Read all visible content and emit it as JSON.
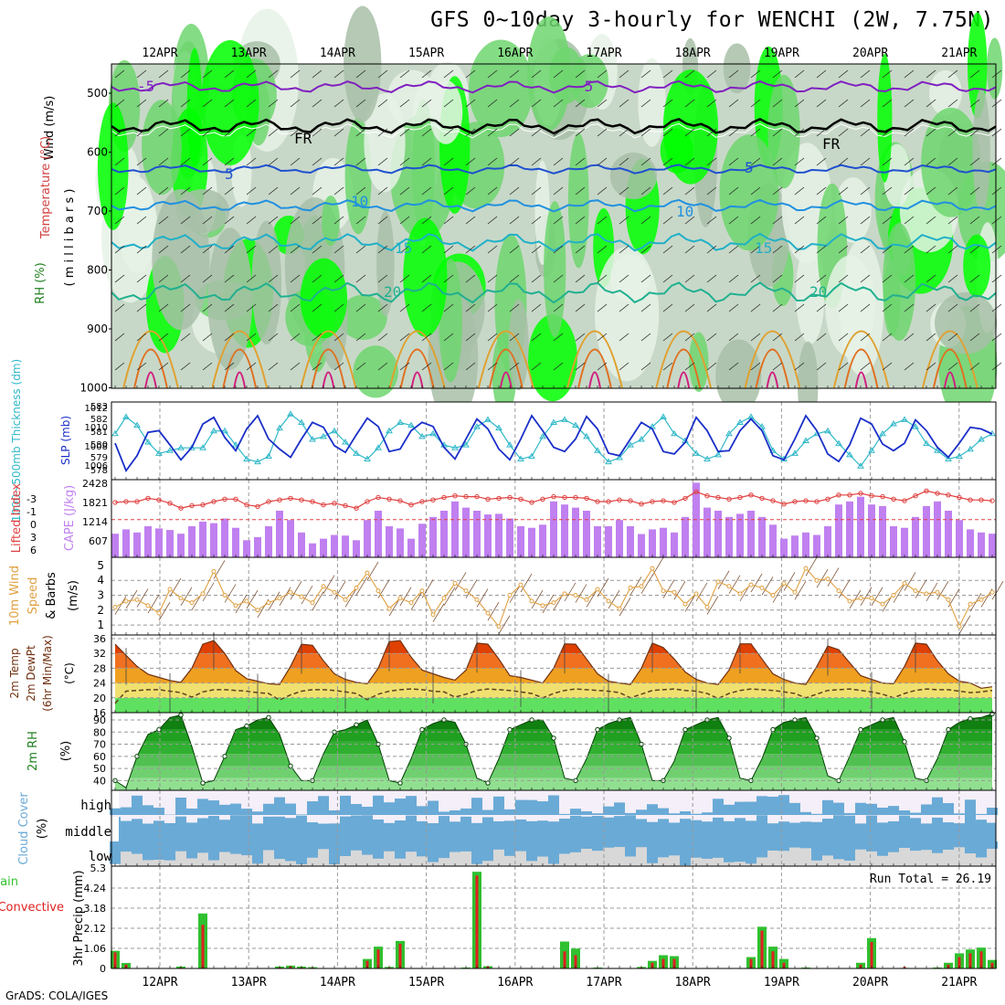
{
  "title": "GFS 0~10day 3-hourly for WENCHI (2W, 7.75N)",
  "credit": "GrADS: COLA/IGES",
  "dates": [
    "12APR",
    "13APR",
    "14APR",
    "15APR",
    "16APR",
    "17APR",
    "18APR",
    "19APR",
    "20APR",
    "21APR"
  ],
  "colors": {
    "rh_light": "#e6f2e6",
    "rh_mid": "#c8d8c8",
    "rh_dark": "#a8c0a8",
    "rh_green": "#6ed66e",
    "rh_bright": "#00ff00",
    "slp": "#1a2fc8",
    "thickness": "#30b8c8",
    "li": "#e04040",
    "cape": "#c080f0",
    "wind10": "#e0a040",
    "temp_hot": "#e04000",
    "temp_warm": "#f0a020",
    "temp_mild": "#f0e070",
    "temp_cool": "#60e060",
    "rh_fill_dark": "#108010",
    "rh_fill_light": "#90e090",
    "cloud_blue": "#6aaad6",
    "cloud_grey": "#d8d8d8",
    "precip_total": "#30c030",
    "precip_conv": "#e02020"
  },
  "panels": {
    "upper": {
      "ylabel_wind": "Wind (m/s)",
      "ylabel_temp": "Temperature (°C)",
      "ylabel_rh": "RH (%)",
      "ylabel_p": "( m i l l i b a r s )",
      "yticks": [
        "500",
        "600",
        "700",
        "800",
        "900",
        "1000"
      ],
      "contour_labels": [
        "-5",
        "-5",
        "FR",
        "FR",
        "5",
        "5",
        "10",
        "10",
        "15",
        "15",
        "20",
        "20"
      ]
    },
    "slp": {
      "ylabel_thk": "1000~500mb Thickness (dm)",
      "ylabel_slp": "SLP (mb)",
      "left_ticks": [
        "583",
        "582",
        "581",
        "580",
        "579",
        "578"
      ],
      "right_ticks": [
        "1012",
        "1010",
        "1008",
        "1006"
      ]
    },
    "cape": {
      "ylabel_li": "Lifted Index",
      "ylabel_cape": "CAPE (J/kg)",
      "left_ticks": [
        "-3",
        "-1",
        "0",
        "3",
        "6"
      ],
      "right_ticks": [
        "2428",
        "1821",
        "1214",
        "607"
      ]
    },
    "wind": {
      "ylabel1": "10m Wind",
      "ylabel2": "Speed",
      "ylabel3": "& Barbs",
      "unit": "(m/s)",
      "ticks": [
        "5",
        "4",
        "3",
        "2",
        "1"
      ]
    },
    "temp": {
      "ylabel1": "2m Temp",
      "ylabel2": "2m DewPt",
      "ylabel3": "(6hr Min/Max)",
      "unit": "(°C)",
      "ticks": [
        "36",
        "32",
        "28",
        "24",
        "20",
        "16"
      ]
    },
    "rh2m": {
      "ylabel": "2m RH",
      "unit": "(%)",
      "ticks": [
        "90",
        "80",
        "70",
        "60",
        "50",
        "40"
      ]
    },
    "cloud": {
      "ylabel": "Cloud Cover",
      "unit": "(%)",
      "levels": [
        "high",
        "middle",
        "low"
      ]
    },
    "precip": {
      "ylabel1": "Total / Rain",
      "ylabel2": "Convective",
      "ylabel3": "3hr Precip (mm)",
      "ticks": [
        "5.3",
        "4.24",
        "3.18",
        "2.12",
        "1.06",
        "0"
      ],
      "run_total": "Run Total = 26.19"
    }
  },
  "chart_data": [
    {
      "type": "line",
      "title": "",
      "xlabel": "",
      "ylabel": "SLP (mb)",
      "series": [
        {
          "name": "SLP (mb)",
          "values": [
            1008.5,
            1005.2,
            1007,
            1009.8,
            1010,
            1008.3,
            1006.5,
            1008,
            1010.8,
            1011.6,
            1009.2,
            1007.6,
            1010.2,
            1011.8,
            1009,
            1007.8,
            1006.8,
            1009,
            1011,
            1010.4,
            1008.2,
            1007.4,
            1009.5,
            1011.5,
            1010.5,
            1007.5,
            1007.8,
            1010,
            1011,
            1010.5,
            1008,
            1006.6,
            1009,
            1011.4,
            1010.2,
            1007.8,
            1006.5,
            1009,
            1011.8,
            1010,
            1008,
            1007.5,
            1009,
            1011.7,
            1010.2,
            1007.3,
            1007,
            1009,
            1011,
            1010.2,
            1007.5,
            1007.2,
            1008.6,
            1011.6,
            1010,
            1007.5,
            1007.6,
            1010,
            1011.4,
            1010,
            1007,
            1006.5,
            1009,
            1011.8,
            1010,
            1007.2,
            1006.3,
            1008.3,
            1011.5,
            1010.8,
            1008.4,
            1007.6,
            1008.5,
            1011.3,
            1010,
            1008,
            1006.8,
            1008.5,
            1010.4,
            1010.2,
            1009.6
          ]
        },
        {
          "name": "1000~500mb Thickness (dm)",
          "values": [
            581,
            582.2,
            581.6,
            580.4,
            579.6,
            579.8,
            580,
            580,
            580,
            581.2,
            581.2,
            580.2,
            579.2,
            579,
            579.4,
            581.4,
            582.4,
            581.8,
            580.6,
            580.8,
            581.2,
            580.4,
            579.6,
            579.2,
            580,
            581.2,
            581.8,
            581.6,
            580.8,
            581,
            580.2,
            580,
            580.2,
            581.5,
            582,
            581.4,
            580.2,
            579.2,
            579.4,
            580.8,
            581.8,
            582,
            581.6,
            580.8,
            579.8,
            579,
            579.3,
            580.2,
            580.6,
            581.5,
            582.2,
            581,
            580.5,
            579.6,
            579.2,
            579.5,
            581,
            581.8,
            582.2,
            581.5,
            579.8,
            579.2,
            579.6,
            580.5,
            581,
            581.2,
            580.3,
            579.5,
            578.7,
            579.8,
            581,
            581.7,
            582,
            581.5,
            580.3,
            579.8,
            579.2,
            579.4,
            579.9,
            580.6,
            581
          ]
        }
      ]
    },
    {
      "type": "bar",
      "title": "",
      "ylabel": "CAPE (J/kg)",
      "series": [
        {
          "name": "CAPE (J/kg)",
          "values": [
            760,
            900,
            800,
            1000,
            930,
            880,
            760,
            1000,
            1150,
            1100,
            1250,
            950,
            550,
            650,
            1000,
            1500,
            1200,
            800,
            450,
            600,
            720,
            700,
            550,
            1200,
            1500,
            1000,
            930,
            600,
            1080,
            1300,
            1500,
            1800,
            1600,
            1500,
            1380,
            1400,
            1250,
            1000,
            950,
            1050,
            1800,
            1700,
            1600,
            1500,
            1000,
            1000,
            1200,
            1000,
            750,
            900,
            950,
            800,
            1300,
            2400,
            1600,
            1500,
            1300,
            1400,
            1500,
            1300,
            1050,
            600,
            700,
            800,
            720,
            1000,
            1700,
            1800,
            1950,
            1700,
            1650,
            1000,
            950,
            1300,
            1650,
            1800,
            1500,
            1200,
            900,
            800,
            760
          ]
        },
        {
          "name": "Lifted Index",
          "values": [
            -1.9,
            -2,
            -2,
            -2.4,
            -2.2,
            -1.8,
            -1.2,
            -1.5,
            -1.6,
            -2,
            -2.3,
            -2.3,
            -1.6,
            -1.4,
            -2,
            -2.2,
            -2.4,
            -2.2,
            -2,
            -1.6,
            -1.8,
            -1.5,
            -1.2,
            -2,
            -2.5,
            -2.3,
            -2.1,
            -1.6,
            -2,
            -2.2,
            -2.5,
            -2.7,
            -2.6,
            -2.6,
            -2.3,
            -2.4,
            -2.5,
            -2.3,
            -1.9,
            -2.3,
            -2.6,
            -2.5,
            -2.5,
            -2.4,
            -2,
            -2,
            -2.2,
            -2.1,
            -1.7,
            -2,
            -2.1,
            -1.9,
            -2.4,
            -3.2,
            -2.7,
            -2.5,
            -2.3,
            -2.5,
            -2.8,
            -2.4,
            -2.1,
            -1.7,
            -2,
            -2.1,
            -2,
            -2.3,
            -2.8,
            -2.8,
            -3,
            -2.7,
            -2.6,
            -2.3,
            -2.1,
            -2.7,
            -3.3,
            -3,
            -2.8,
            -2.5,
            -2.2,
            -2.2,
            -2.1
          ]
        }
      ]
    },
    {
      "type": "line",
      "ylabel": "10m Wind Speed (m/s)",
      "series": [
        {
          "name": "10m Wind Speed",
          "values": [
            2.2,
            2.6,
            2.7,
            2.3,
            1.8,
            3.4,
            2.8,
            2.5,
            3.1,
            4.6,
            3.0,
            2.3,
            2.6,
            2.0,
            2.5,
            2.8,
            3.2,
            2.9,
            2.5,
            3.6,
            3.2,
            2.7,
            3.5,
            4.5,
            3.3,
            2.1,
            2.8,
            2.5,
            3.3,
            1.7,
            2.8,
            3.8,
            3.3,
            2.7,
            1.8,
            0.9,
            3.0,
            3.7,
            2.6,
            2.3,
            2.5,
            3.1,
            3.0,
            2.7,
            3.4,
            2.6,
            2.1,
            3.5,
            3.6,
            4.8,
            3.3,
            3.2,
            2.4,
            3.1,
            2.2,
            3.9,
            3.6,
            3.1,
            3.7,
            3.5,
            3.0,
            3.8,
            3.2,
            4.8,
            4.0,
            4.1,
            3.3,
            2.6,
            2.8,
            2.8,
            2.4,
            3.0,
            3.8,
            3.3,
            3.1,
            3.2,
            2.7,
            0.9,
            2.4,
            2.7,
            3.2
          ]
        }
      ]
    },
    {
      "type": "area",
      "ylabel": "2m Temp (°C)",
      "series": [
        {
          "name": "2m Temp",
          "values": [
            34.5,
            31.5,
            28.5,
            26.4,
            25.5,
            24.7,
            24.2,
            28.0,
            34.5,
            35.5,
            32.0,
            27.4,
            25.2,
            24.5,
            23.8,
            23.6,
            28.5,
            34.5,
            34.2,
            30.0,
            26.5,
            25.0,
            24.2,
            23.8,
            28.0,
            35.2,
            35.5,
            31.0,
            27.5,
            26.5,
            25.5,
            24.8,
            27.5,
            34.8,
            34.5,
            30.5,
            26.0,
            25.5,
            24.8,
            24.0,
            28.0,
            34.6,
            34.5,
            30.5,
            26.5,
            24.5,
            24.0,
            23.6,
            28.0,
            34.8,
            33.6,
            30.5,
            27.0,
            25.0,
            24.0,
            23.6,
            27.5,
            34.6,
            34.6,
            30.5,
            26.5,
            25.0,
            24.0,
            23.6,
            28.5,
            34.0,
            33.0,
            29.5,
            26.0,
            25.0,
            24.0,
            23.8,
            28.5,
            34.8,
            34.5,
            30.0,
            26.5,
            24.5,
            24.0,
            22.6,
            23.0
          ]
        },
        {
          "name": "2m DewPt",
          "values": [
            18.5,
            21.8,
            22.0,
            22.2,
            22.2,
            21.8,
            21.4,
            20.2,
            21.6,
            22.2,
            22.2,
            22.0,
            21.8,
            21.4,
            21.2,
            19.4,
            20.8,
            21.8,
            22.2,
            22.2,
            22.0,
            21.6,
            21.2,
            19.5,
            21.0,
            21.8,
            22.2,
            22.4,
            22.2,
            21.8,
            21.6,
            20.2,
            21.0,
            22.0,
            22.4,
            22.2,
            22.0,
            21.6,
            21.2,
            20.0,
            21.2,
            22.0,
            22.4,
            22.2,
            22.0,
            21.8,
            21.4,
            20.0,
            21.0,
            22.0,
            22.2,
            22.4,
            22.0,
            21.8,
            21.2,
            19.8,
            21.2,
            22.0,
            22.4,
            22.2,
            22.0,
            21.6,
            21.2,
            20.0,
            21.0,
            22.0,
            22.2,
            22.4,
            22.0,
            21.6,
            21.0,
            20.0,
            21.2,
            22.0,
            22.4,
            22.2,
            22.2,
            21.8,
            21.4,
            21.6,
            22.0
          ]
        }
      ]
    },
    {
      "type": "area",
      "ylabel": "2m RH (%)",
      "series": [
        {
          "name": "2m RH",
          "values": [
            40,
            34,
            60,
            78,
            82,
            92,
            94,
            68,
            38,
            40,
            60,
            82,
            85,
            90,
            92,
            78,
            52,
            40,
            40,
            62,
            80,
            82,
            86,
            90,
            70,
            40,
            38,
            58,
            82,
            87,
            90,
            88,
            70,
            42,
            38,
            58,
            82,
            86,
            90,
            90,
            75,
            42,
            40,
            58,
            82,
            87,
            90,
            92,
            70,
            40,
            40,
            56,
            82,
            86,
            90,
            92,
            75,
            42,
            40,
            58,
            82,
            88,
            90,
            92,
            75,
            44,
            40,
            60,
            82,
            86,
            90,
            92,
            72,
            42,
            40,
            58,
            82,
            88,
            91,
            92,
            95
          ]
        }
      ]
    },
    {
      "type": "bar",
      "ylabel": "3hr Precip (mm)",
      "series": [
        {
          "name": "Total / Rain",
          "values": [
            0.93,
            0.29,
            0,
            0,
            0,
            0,
            0.1,
            0,
            2.9,
            0,
            0,
            0,
            0,
            0,
            0,
            0.1,
            0.15,
            0.1,
            0.07,
            0,
            0,
            0,
            0,
            0.5,
            1.15,
            0.08,
            1.45,
            0,
            0,
            0,
            0,
            0,
            0.05,
            5.1,
            0.12,
            0,
            0,
            0,
            0,
            0,
            0,
            1.42,
            1.05,
            0,
            0.05,
            0,
            0,
            0,
            0.08,
            0.4,
            0.7,
            0.65,
            0,
            0,
            0,
            0,
            0,
            0,
            0.6,
            2.2,
            1.15,
            0.5,
            0,
            0.05,
            0,
            0,
            0,
            0,
            0.3,
            1.6,
            0,
            0,
            0.03,
            0,
            0,
            0.05,
            0.3,
            0.8,
            1.0,
            1.1,
            0.45
          ]
        },
        {
          "name": "Convective",
          "values": [
            0.85,
            0.2,
            0,
            0,
            0,
            0,
            0.05,
            0,
            2.3,
            0,
            0,
            0,
            0,
            0,
            0,
            0.05,
            0.1,
            0.05,
            0.05,
            0,
            0,
            0,
            0,
            0.4,
            1.0,
            0.05,
            1.3,
            0,
            0,
            0,
            0,
            0,
            0.03,
            4.9,
            0.1,
            0,
            0,
            0,
            0,
            0,
            0,
            0.9,
            0.7,
            0,
            0.03,
            0,
            0,
            0,
            0.05,
            0.3,
            0.5,
            0.5,
            0,
            0,
            0,
            0,
            0,
            0,
            0.5,
            2.0,
            0.9,
            0.3,
            0,
            0.03,
            0,
            0,
            0,
            0,
            0.2,
            1.4,
            0,
            0,
            0.08,
            0,
            0,
            0.03,
            0.2,
            0.6,
            0.8,
            0.9,
            0.3
          ]
        }
      ]
    }
  ]
}
